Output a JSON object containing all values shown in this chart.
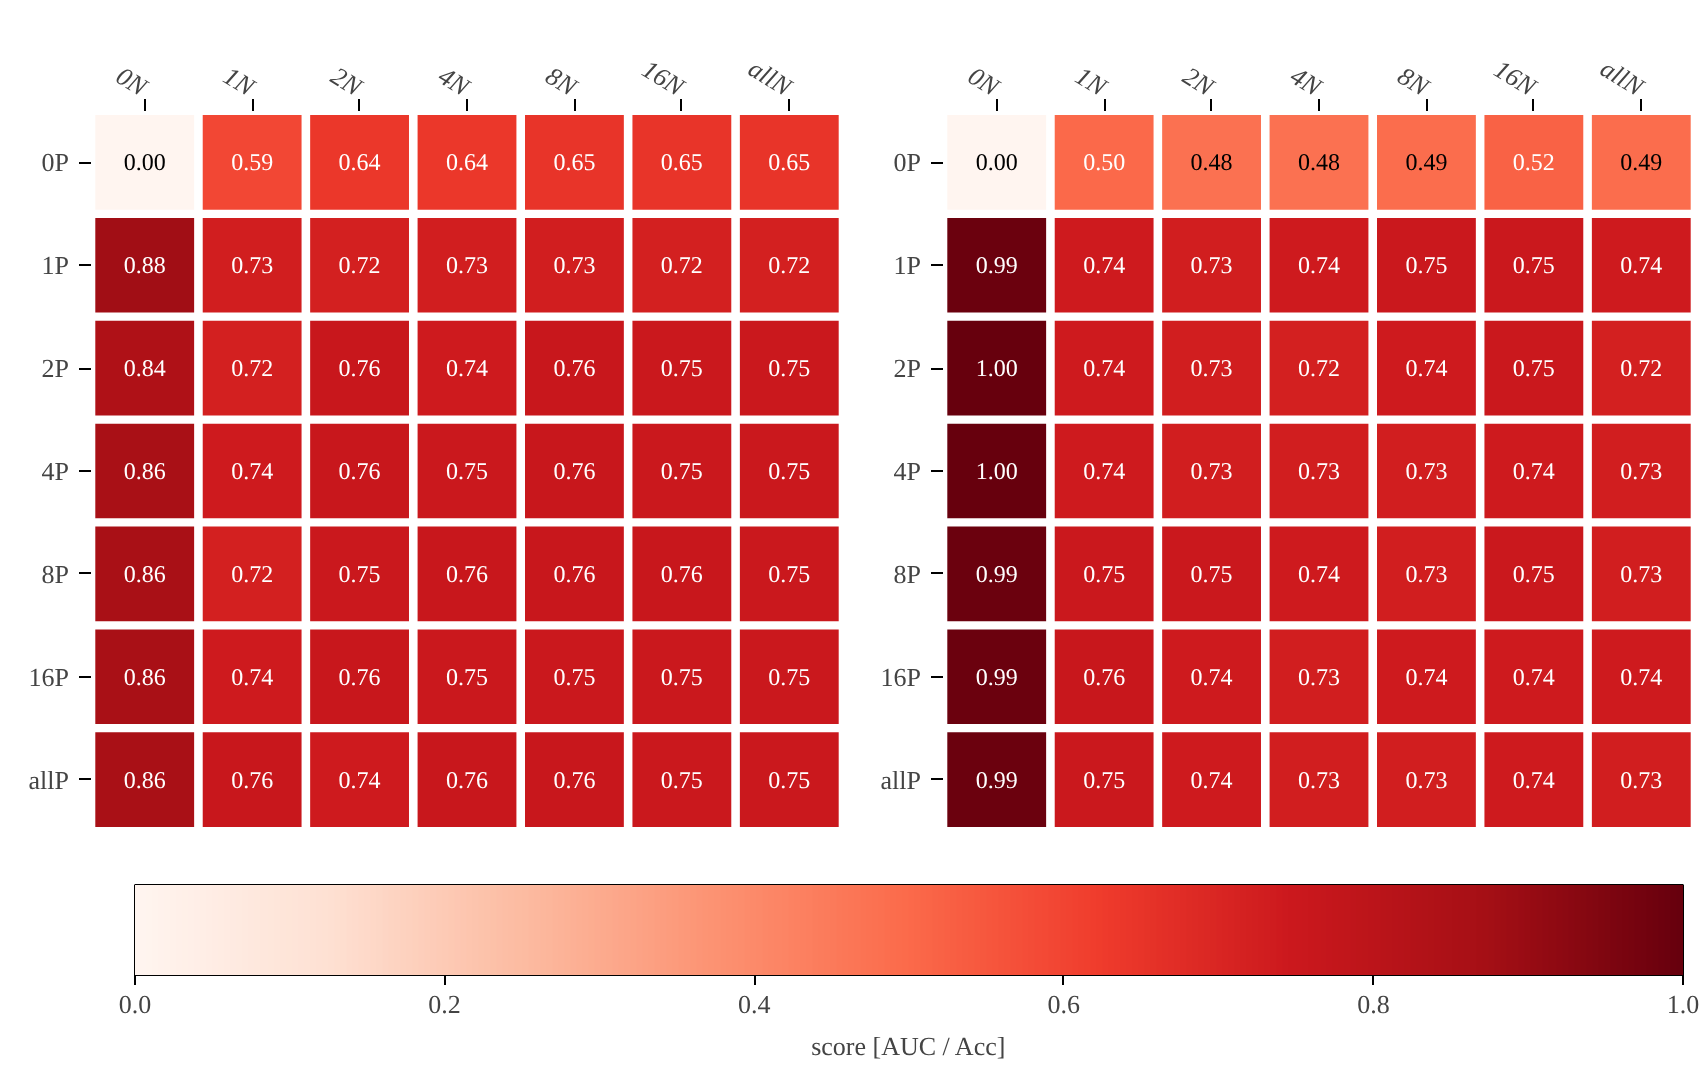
{
  "chart_data": [
    {
      "type": "heatmap",
      "categories": [
        "0N",
        "1N",
        "2N",
        "4N",
        "8N",
        "16N",
        "allN"
      ],
      "y_categories": [
        "0P",
        "1P",
        "2P",
        "4P",
        "8P",
        "16P",
        "allP"
      ],
      "cells": [
        [
          0.0,
          0.59,
          0.64,
          0.64,
          0.65,
          0.65,
          0.65
        ],
        [
          0.88,
          0.73,
          0.72,
          0.73,
          0.73,
          0.72,
          0.72
        ],
        [
          0.84,
          0.72,
          0.76,
          0.74,
          0.76,
          0.75,
          0.75
        ],
        [
          0.86,
          0.74,
          0.76,
          0.75,
          0.76,
          0.75,
          0.75
        ],
        [
          0.86,
          0.72,
          0.75,
          0.76,
          0.76,
          0.76,
          0.75
        ],
        [
          0.86,
          0.74,
          0.76,
          0.75,
          0.75,
          0.75,
          0.75
        ],
        [
          0.86,
          0.76,
          0.74,
          0.76,
          0.76,
          0.75,
          0.75
        ]
      ],
      "cell_labels": [
        [
          "0.00",
          "0.59",
          "0.64",
          "0.64",
          "0.65",
          "0.65",
          "0.65"
        ],
        [
          "0.88",
          "0.73",
          "0.72",
          "0.73",
          "0.73",
          "0.72",
          "0.72"
        ],
        [
          "0.84",
          "0.72",
          "0.76",
          "0.74",
          "0.76",
          "0.75",
          "0.75"
        ],
        [
          "0.86",
          "0.74",
          "0.76",
          "0.75",
          "0.76",
          "0.75",
          "0.75"
        ],
        [
          "0.86",
          "0.72",
          "0.75",
          "0.76",
          "0.76",
          "0.76",
          "0.75"
        ],
        [
          "0.86",
          "0.74",
          "0.76",
          "0.75",
          "0.75",
          "0.75",
          "0.75"
        ],
        [
          "0.86",
          "0.76",
          "0.74",
          "0.76",
          "0.76",
          "0.75",
          "0.75"
        ]
      ]
    },
    {
      "type": "heatmap",
      "categories": [
        "0N",
        "1N",
        "2N",
        "4N",
        "8N",
        "16N",
        "allN"
      ],
      "y_categories": [
        "0P",
        "1P",
        "2P",
        "4P",
        "8P",
        "16P",
        "allP"
      ],
      "cells": [
        [
          0.0,
          0.5,
          0.48,
          0.48,
          0.49,
          0.52,
          0.49
        ],
        [
          0.99,
          0.74,
          0.73,
          0.74,
          0.75,
          0.75,
          0.74
        ],
        [
          1.0,
          0.74,
          0.73,
          0.72,
          0.74,
          0.75,
          0.72
        ],
        [
          1.0,
          0.74,
          0.73,
          0.73,
          0.73,
          0.74,
          0.73
        ],
        [
          0.99,
          0.75,
          0.75,
          0.74,
          0.73,
          0.75,
          0.73
        ],
        [
          0.99,
          0.76,
          0.74,
          0.73,
          0.74,
          0.74,
          0.74
        ],
        [
          0.99,
          0.75,
          0.74,
          0.73,
          0.73,
          0.74,
          0.73
        ]
      ],
      "cell_labels": [
        [
          "0.00",
          "0.50",
          "0.48",
          "0.48",
          "0.49",
          "0.52",
          "0.49"
        ],
        [
          "0.99",
          "0.74",
          "0.73",
          "0.74",
          "0.75",
          "0.75",
          "0.74"
        ],
        [
          "1.00",
          "0.74",
          "0.73",
          "0.72",
          "0.74",
          "0.75",
          "0.72"
        ],
        [
          "1.00",
          "0.74",
          "0.73",
          "0.73",
          "0.73",
          "0.74",
          "0.73"
        ],
        [
          "0.99",
          "0.75",
          "0.75",
          "0.74",
          "0.73",
          "0.75",
          "0.73"
        ],
        [
          "0.99",
          "0.76",
          "0.74",
          "0.73",
          "0.74",
          "0.74",
          "0.74"
        ],
        [
          "0.99",
          "0.75",
          "0.74",
          "0.73",
          "0.73",
          "0.74",
          "0.73"
        ]
      ],
      "clim": [
        0.0,
        1.0
      ],
      "cticks": [
        {
          "value": 0,
          "label": "0.0"
        },
        0.2,
        0.4,
        0.6,
        0.8,
        {
          "value": 1,
          "label": "1.0"
        }
      ],
      "clabel": "score [AUC / Acc]"
    }
  ]
}
